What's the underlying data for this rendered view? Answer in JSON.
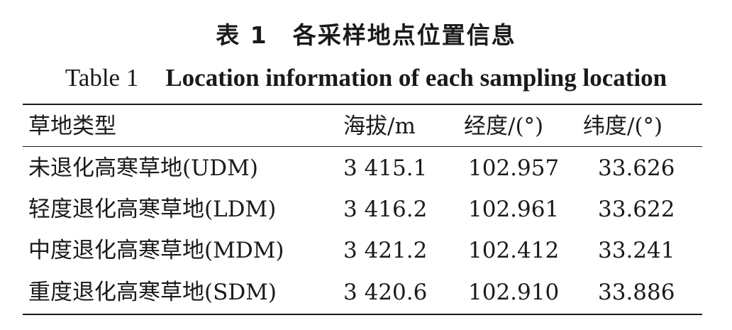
{
  "caption": {
    "cn": "表 1　各采样地点位置信息",
    "en_label": "Table 1",
    "en_text": "Location information of each sampling location"
  },
  "table": {
    "headers": [
      "草地类型",
      "海拔/m",
      "经度/(°)",
      "纬度/(°)"
    ],
    "rows": [
      {
        "type": "未退化高寒草地(UDM)",
        "altitude": "3 415.1",
        "longitude": "102.957",
        "latitude": "33.626"
      },
      {
        "type": "轻度退化高寒草地(LDM)",
        "altitude": "3 416.2",
        "longitude": "102.961",
        "latitude": "33.622"
      },
      {
        "type": "中度退化高寒草地(MDM)",
        "altitude": "3 421.2",
        "longitude": "102.412",
        "latitude": "33.241"
      },
      {
        "type": "重度退化高寒草地(SDM)",
        "altitude": "3 420.6",
        "longitude": "102.910",
        "latitude": "33.886"
      }
    ]
  }
}
